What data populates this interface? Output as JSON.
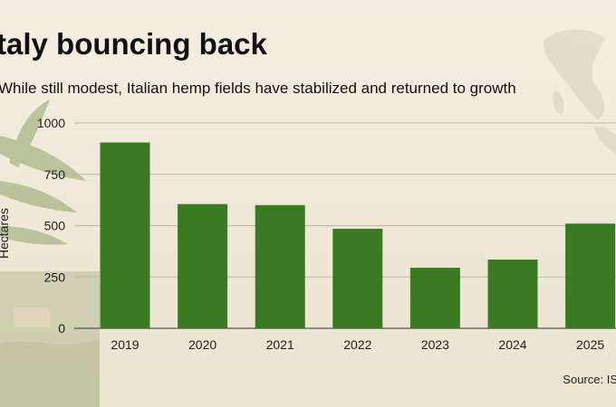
{
  "header": {
    "title": "taly bouncing back",
    "subtitle": "While still modest, Italian hemp fields have stabilized and returned to growth"
  },
  "footer": {
    "source": "Source: IS"
  },
  "colors": {
    "bar": "#3a7a23",
    "grid": "#bdb8aa",
    "axis": "#555555"
  },
  "chart_data": {
    "type": "bar",
    "title": "taly bouncing back",
    "subtitle": "While still modest, Italian hemp fields have stabilized and returned to growth",
    "categories": [
      "2019",
      "2020",
      "2021",
      "2022",
      "2023",
      "2024",
      "2025"
    ],
    "values": [
      905,
      605,
      600,
      485,
      295,
      335,
      510
    ],
    "ylabel": "Hectares",
    "xlabel": "",
    "ylim": [
      0,
      1000
    ],
    "yticks": [
      "0",
      "250",
      "500",
      "750",
      "1000"
    ],
    "grid": true,
    "legend": "none"
  }
}
